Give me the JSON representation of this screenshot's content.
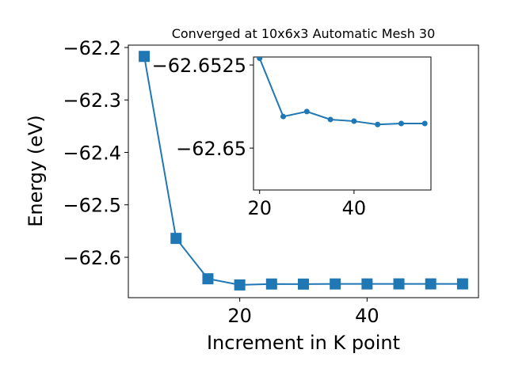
{
  "chart_data": [
    {
      "type": "line",
      "title": "Converged at 10x6x3 Automatic Mesh 30",
      "x_label": "Increment in K point",
      "y_label": "Energy (eV)",
      "x": [
        5,
        10,
        15,
        20,
        25,
        30,
        35,
        40,
        45,
        50,
        55
      ],
      "series": [
        {
          "color": "#1f77b4",
          "marker": "square",
          "values": [
            -62.217,
            -62.564,
            -62.641,
            -62.6527,
            -62.65095,
            -62.6511,
            -62.65086,
            -62.65081,
            -62.65071,
            -62.65074,
            -62.65074
          ]
        }
      ],
      "xlim": [
        2.5,
        57.5
      ],
      "xticks": [
        20,
        40
      ],
      "ylim": [
        -62.677,
        -62.1955
      ],
      "yticks": [
        -62.6,
        -62.5,
        -62.4,
        -62.3,
        -62.2
      ]
    },
    {
      "type": "line",
      "x": [
        20,
        25,
        30,
        35,
        40,
        45,
        50,
        55
      ],
      "series": [
        {
          "color": "#1f77b4",
          "marker": "circle",
          "values": [
            -62.6527,
            -62.65095,
            -62.6511,
            -62.65086,
            -62.65081,
            -62.65071,
            -62.65074,
            -62.65074
          ]
        }
      ],
      "xlim": [
        18.7,
        56.3
      ],
      "xticks": [
        20,
        40
      ],
      "ylim": [
        -62.64874,
        -62.65274
      ],
      "yticks": [
        -62.65,
        {
          "value": -62.6525,
          "label": "-62.6525"
        }
      ]
    }
  ]
}
